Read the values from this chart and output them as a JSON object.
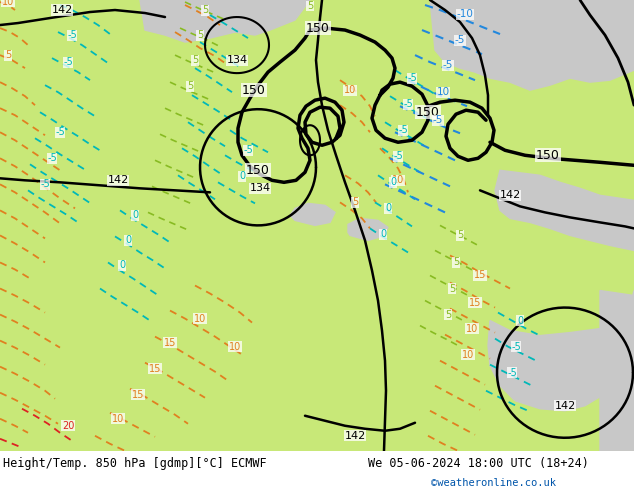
{
  "title_left": "Height/Temp. 850 hPa [gdmp][°C] ECMWF",
  "title_right": "We 05-06-2024 18:00 UTC (18+24)",
  "credit": "©weatheronline.co.uk",
  "bg_green": "#c8e878",
  "bg_gray": "#b8b8b8",
  "bg_light_green": "#d8f090",
  "text_color": "#000000",
  "credit_color": "#0055aa",
  "col_black": "#000000",
  "col_orange": "#e08020",
  "col_cyan": "#00b8b8",
  "col_blue": "#2288dd",
  "col_green_y": "#88bb22",
  "col_red": "#dd2222",
  "footer_fs": 8.5,
  "figsize": [
    6.34,
    4.9
  ],
  "dpi": 100
}
